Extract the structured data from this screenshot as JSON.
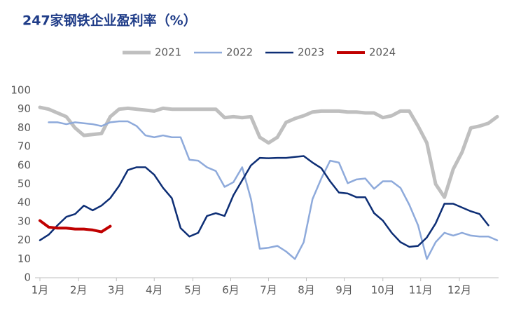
{
  "chart_data": {
    "type": "line",
    "title": "247家钢铁企业盈利率（%）",
    "x": [
      0,
      1,
      2,
      3,
      4,
      5,
      6,
      7,
      8,
      9,
      10,
      11,
      12,
      13,
      14,
      15,
      16,
      17,
      18,
      19,
      20,
      21,
      22,
      23,
      24,
      25,
      26,
      27,
      28,
      29,
      30,
      31,
      32,
      33,
      34,
      35,
      36,
      37,
      38,
      39,
      40,
      41,
      42,
      43,
      44,
      45,
      46,
      47,
      48,
      49,
      50,
      51,
      52
    ],
    "xlim": [
      0,
      52
    ],
    "xticks": [
      {
        "value": 0,
        "label": "1月"
      },
      {
        "value": 4.4,
        "label": "2月"
      },
      {
        "value": 8.7,
        "label": "3月"
      },
      {
        "value": 13,
        "label": "4月"
      },
      {
        "value": 17.4,
        "label": "5月"
      },
      {
        "value": 21.7,
        "label": "6月"
      },
      {
        "value": 26,
        "label": "7月"
      },
      {
        "value": 30.3,
        "label": "8月"
      },
      {
        "value": 34.6,
        "label": "9月"
      },
      {
        "value": 39,
        "label": "10月"
      },
      {
        "value": 43.3,
        "label": "11月"
      },
      {
        "value": 47.7,
        "label": "12月"
      }
    ],
    "ylim": [
      0,
      100
    ],
    "yticks": [
      0,
      10,
      20,
      30,
      40,
      50,
      60,
      70,
      80,
      90,
      100
    ],
    "legend": "top",
    "series": [
      {
        "name": "2021",
        "color": "#bfbfbf",
        "width": 5,
        "values": [
          91,
          90,
          88,
          86,
          80,
          76,
          76.5,
          77,
          86,
          90,
          90.5,
          90,
          89.5,
          89,
          90.5,
          90,
          90,
          90,
          90,
          90,
          90,
          85.5,
          86,
          85.5,
          86,
          75,
          72,
          75,
          83,
          85,
          86.5,
          88.5,
          89,
          89,
          89,
          88.5,
          88.5,
          88,
          88,
          85.5,
          86.5,
          89,
          89,
          81,
          72,
          50,
          43,
          58,
          67,
          80,
          81,
          82.5,
          86
        ]
      },
      {
        "name": "2022",
        "color": "#8eaadb",
        "width": 2.5,
        "values": [
          null,
          83,
          83,
          82,
          83,
          82.5,
          82,
          81,
          83,
          83.5,
          83.5,
          81,
          76,
          75,
          76,
          75,
          75,
          63,
          62.5,
          59,
          57,
          48.5,
          51,
          59,
          42,
          15.5,
          16,
          17,
          14,
          10,
          19,
          42,
          53,
          62.5,
          61.5,
          50.5,
          52.5,
          53,
          47.5,
          51.5,
          51.5,
          48,
          39,
          28,
          10,
          19,
          24,
          22.5,
          24,
          22.5,
          22,
          22,
          20
        ]
      },
      {
        "name": "2023",
        "color": "#0d2e75",
        "width": 2.5,
        "values": [
          20,
          23,
          28,
          32.5,
          34,
          38.5,
          36,
          38.5,
          42.5,
          49,
          57.5,
          59,
          59,
          55,
          48,
          42.5,
          26.5,
          22,
          24,
          33,
          34.5,
          33,
          44,
          52,
          60,
          64,
          63.8,
          64,
          64,
          64.5,
          65,
          61.5,
          58.5,
          51.5,
          45.5,
          45,
          43,
          43,
          34.5,
          30.5,
          24,
          19,
          16.5,
          17,
          21.5,
          29,
          39.5,
          39.5,
          37.5,
          35.5,
          34,
          28,
          null
        ]
      },
      {
        "name": "2024",
        "color": "#c00000",
        "width": 4,
        "values": [
          30.5,
          27,
          26.5,
          26.5,
          26,
          26,
          25.5,
          24.5,
          27.5,
          null,
          null,
          null,
          null,
          null,
          null,
          null,
          null,
          null,
          null,
          null,
          null,
          null,
          null,
          null,
          null,
          null,
          null,
          null,
          null,
          null,
          null,
          null,
          null,
          null,
          null,
          null,
          null,
          null,
          null,
          null,
          null,
          null,
          null,
          null,
          null,
          null,
          null,
          null,
          null,
          null,
          null,
          null,
          null
        ]
      }
    ]
  }
}
